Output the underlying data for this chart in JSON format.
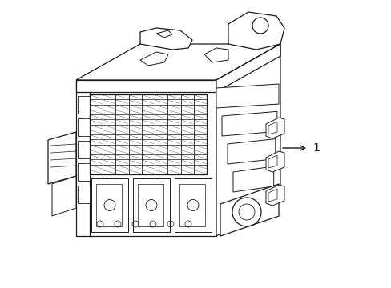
{
  "background_color": "#ffffff",
  "line_color": "#1a1a1a",
  "line_width": 0.9,
  "label_text": "1",
  "figsize": [
    4.89,
    3.6
  ],
  "dpi": 100,
  "xlim": [
    0,
    489
  ],
  "ylim": [
    0,
    360
  ]
}
